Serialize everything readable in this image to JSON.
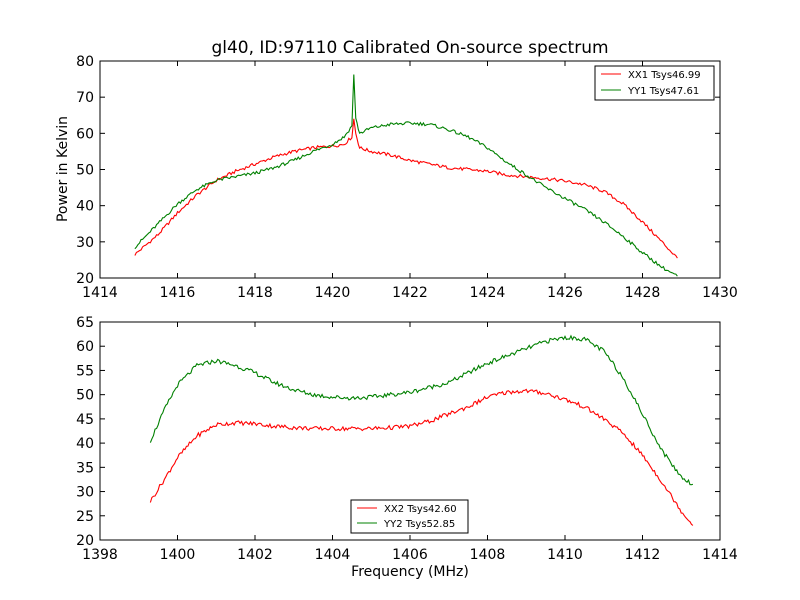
{
  "chart_data": [
    {
      "type": "line",
      "title": "gl40, ID:97110 Calibrated On-source spectrum",
      "xlabel": "",
      "ylabel": "Power in Kelvin",
      "xlim": [
        1414,
        1430
      ],
      "ylim": [
        20,
        80
      ],
      "xticks": [
        "1414",
        "1416",
        "1418",
        "1420",
        "1422",
        "1424",
        "1426",
        "1428",
        "1430"
      ],
      "yticks": [
        "20",
        "30",
        "40",
        "50",
        "60",
        "70",
        "80"
      ],
      "grid": false,
      "legend_position": "top-right",
      "series": [
        {
          "name": "XX1 Tsys46.99",
          "color": "#ff0000",
          "x": [
            1414.9,
            1415.5,
            1416.0,
            1416.5,
            1417.0,
            1417.5,
            1418.0,
            1418.5,
            1419.0,
            1419.5,
            1420.0,
            1420.3,
            1420.5,
            1420.55,
            1420.6,
            1420.7,
            1421.0,
            1421.5,
            1422.0,
            1422.5,
            1423.0,
            1423.5,
            1424.0,
            1424.5,
            1425.0,
            1425.5,
            1426.0,
            1426.5,
            1427.0,
            1427.5,
            1428.0,
            1428.5,
            1428.9
          ],
          "values": [
            26.5,
            32.0,
            38.0,
            43.0,
            47.0,
            49.5,
            51.5,
            53.5,
            55.0,
            56.0,
            56.5,
            57.0,
            59.0,
            64.0,
            60.0,
            56.0,
            55.0,
            54.0,
            52.5,
            51.5,
            50.5,
            50.0,
            49.5,
            48.5,
            48.0,
            47.5,
            46.8,
            45.8,
            44.0,
            40.5,
            35.5,
            30.0,
            25.5
          ]
        },
        {
          "name": "YY1 Tsys47.61",
          "color": "#008000",
          "x": [
            1414.9,
            1415.5,
            1416.0,
            1416.5,
            1417.0,
            1417.5,
            1418.0,
            1418.5,
            1419.0,
            1419.5,
            1420.0,
            1420.3,
            1420.5,
            1420.55,
            1420.6,
            1420.7,
            1421.0,
            1421.5,
            1422.0,
            1422.5,
            1423.0,
            1423.5,
            1424.0,
            1424.5,
            1425.0,
            1425.5,
            1426.0,
            1426.5,
            1427.0,
            1427.5,
            1428.0,
            1428.5,
            1428.9
          ],
          "values": [
            28.5,
            35.0,
            40.5,
            44.5,
            47.0,
            48.0,
            49.0,
            50.5,
            52.5,
            55.0,
            57.0,
            59.0,
            62.0,
            76.5,
            64.0,
            60.0,
            61.5,
            62.5,
            62.8,
            62.5,
            61.0,
            59.0,
            56.0,
            52.0,
            48.5,
            45.0,
            42.0,
            39.0,
            35.5,
            31.5,
            27.0,
            23.0,
            20.5
          ]
        }
      ]
    },
    {
      "type": "line",
      "title": "",
      "xlabel": "Frequency (MHz)",
      "ylabel": "",
      "xlim": [
        1398,
        1414
      ],
      "ylim": [
        20,
        65
      ],
      "xticks": [
        "1398",
        "1400",
        "1402",
        "1404",
        "1406",
        "1408",
        "1410",
        "1412",
        "1414"
      ],
      "yticks": [
        "20",
        "25",
        "30",
        "35",
        "40",
        "45",
        "50",
        "55",
        "60",
        "65"
      ],
      "grid": false,
      "legend_position": "bottom-center",
      "series": [
        {
          "name": "XX2 Tsys42.60",
          "color": "#ff0000",
          "x": [
            1399.3,
            1399.7,
            1400.0,
            1400.5,
            1401.0,
            1401.5,
            1402.0,
            1402.5,
            1403.0,
            1403.5,
            1404.0,
            1404.5,
            1405.0,
            1405.5,
            1406.0,
            1406.5,
            1407.0,
            1407.5,
            1408.0,
            1408.5,
            1409.0,
            1409.5,
            1410.0,
            1410.5,
            1411.0,
            1411.5,
            1412.0,
            1412.5,
            1413.0,
            1413.3
          ],
          "values": [
            28.0,
            33.0,
            37.0,
            41.5,
            43.8,
            44.2,
            44.0,
            43.5,
            43.2,
            43.0,
            43.0,
            43.0,
            43.0,
            43.2,
            43.5,
            44.5,
            46.0,
            47.5,
            49.5,
            50.5,
            50.8,
            50.3,
            49.0,
            47.5,
            45.0,
            42.0,
            37.5,
            32.0,
            26.0,
            23.0
          ]
        },
        {
          "name": "YY2 Tsys52.85",
          "color": "#008000",
          "x": [
            1399.3,
            1399.7,
            1400.0,
            1400.5,
            1401.0,
            1401.5,
            1402.0,
            1402.5,
            1403.0,
            1403.5,
            1404.0,
            1404.5,
            1405.0,
            1405.5,
            1406.0,
            1406.5,
            1407.0,
            1407.5,
            1408.0,
            1408.5,
            1409.0,
            1409.5,
            1410.0,
            1410.5,
            1411.0,
            1411.5,
            1412.0,
            1412.5,
            1413.0,
            1413.3
          ],
          "values": [
            40.5,
            47.5,
            52.0,
            56.0,
            57.0,
            56.0,
            54.5,
            52.5,
            51.0,
            50.0,
            49.5,
            49.3,
            49.5,
            50.0,
            50.5,
            51.5,
            52.5,
            54.5,
            56.5,
            58.0,
            59.5,
            61.0,
            61.8,
            61.5,
            59.0,
            53.5,
            46.0,
            38.5,
            33.0,
            31.5
          ]
        }
      ]
    }
  ]
}
